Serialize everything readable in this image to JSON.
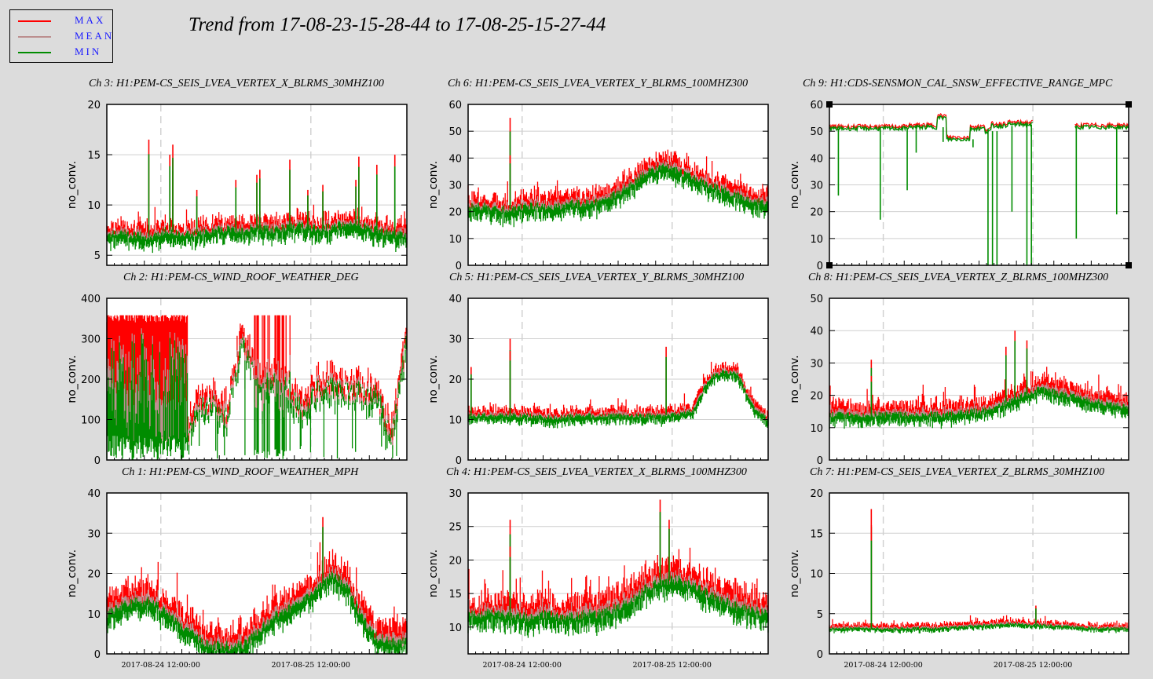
{
  "title": "Trend from 17-08-23-15-28-44 to 17-08-25-15-27-44",
  "legend": [
    {
      "label": "MAX",
      "color": "#ff0000"
    },
    {
      "label": "MEAN",
      "color": "#bc8f8f"
    },
    {
      "label": "MIN",
      "color": "#008c00"
    }
  ],
  "colors": {
    "max": "#ff0000",
    "mean": "#bc8f8f",
    "min": "#008c00",
    "background": "#dcdcdc",
    "plot_bg": "#ffffff",
    "grid": "#cfcfcf"
  },
  "chart_data": [
    {
      "type": "line",
      "title": "Ch 3: H1:PEM-CS_SEIS_LVEA_VERTEX_X_BLRMS_30MHZ100",
      "ylabel": "no_conv.",
      "ylim": [
        4,
        20
      ],
      "yticks": [
        5,
        10,
        15,
        20
      ],
      "xtick_labels": [
        "",
        ""
      ],
      "mean_profile": [
        7,
        7.2,
        7,
        6.8,
        7.5,
        7,
        7.2,
        7.4,
        7.6,
        7.4,
        7.8,
        7.5,
        7.8,
        8,
        7.6,
        7.8,
        8.2,
        8,
        7.5,
        7.2,
        7
      ],
      "spread": 1.6,
      "max_extra": 1.2,
      "spikes": [
        [
          0.14,
          16.5
        ],
        [
          0.21,
          15
        ],
        [
          0.22,
          14.5
        ],
        [
          0.22,
          16
        ],
        [
          0.3,
          11.5
        ],
        [
          0.43,
          12.5
        ],
        [
          0.5,
          13
        ],
        [
          0.51,
          13.5
        ],
        [
          0.61,
          14.5
        ],
        [
          0.67,
          11.5
        ],
        [
          0.72,
          12
        ],
        [
          0.83,
          12.5
        ],
        [
          0.84,
          14.8
        ],
        [
          0.9,
          14
        ],
        [
          0.96,
          15
        ]
      ]
    },
    {
      "type": "line",
      "title": "Ch 6: H1:PEM-CS_SEIS_LVEA_VERTEX_Y_BLRMS_100MHZ300",
      "ylabel": "no_conv.",
      "ylim": [
        0,
        60
      ],
      "yticks": [
        0,
        10,
        20,
        30,
        40,
        50,
        60
      ],
      "xtick_labels": [
        "",
        ""
      ],
      "mean_profile": [
        22,
        22,
        21,
        21,
        22,
        22,
        22,
        23,
        23,
        24,
        27,
        31,
        35,
        37,
        35,
        33,
        30,
        28,
        26,
        24,
        23
      ],
      "spread": 6,
      "max_extra": 5,
      "spikes": [
        [
          0.14,
          55
        ],
        [
          0.14,
          41
        ]
      ]
    },
    {
      "type": "line",
      "title": "Ch 9: H1:CDS-SENSMON_CAL_SNSW_EFFECTIVE_RANGE_MPC",
      "ylabel": "no_conv.",
      "ylim": [
        0,
        60
      ],
      "yticks": [
        0,
        10,
        20,
        30,
        40,
        50,
        60
      ],
      "xtick_labels": [
        "",
        ""
      ],
      "style": "flat",
      "segments": [
        [
          0,
          0.26,
          51
        ],
        [
          0.26,
          0.36,
          51.5
        ],
        [
          0.36,
          0.39,
          55
        ],
        [
          0.39,
          0.47,
          47
        ],
        [
          0.47,
          0.52,
          51
        ],
        [
          0.52,
          0.54,
          50
        ],
        [
          0.54,
          0.59,
          52
        ],
        [
          0.59,
          0.68,
          52.5
        ],
        [
          0.82,
          1.0,
          51.5
        ]
      ],
      "dips": [
        [
          0.03,
          26
        ],
        [
          0.17,
          17
        ],
        [
          0.26,
          28
        ],
        [
          0.29,
          42
        ],
        [
          0.38,
          46
        ],
        [
          0.48,
          44
        ],
        [
          0.53,
          0
        ],
        [
          0.545,
          0
        ],
        [
          0.56,
          0
        ],
        [
          0.61,
          20
        ],
        [
          0.66,
          0
        ],
        [
          0.675,
          0
        ],
        [
          0.825,
          10
        ],
        [
          0.96,
          19
        ]
      ]
    },
    {
      "type": "line",
      "title": "Ch 2: H1:PEM-CS_WIND_ROOF_WEATHER_DEG",
      "ylabel": "no_conv.",
      "ylim": [
        0,
        400
      ],
      "yticks": [
        0,
        100,
        200,
        300,
        400
      ],
      "xtick_labels": [
        "",
        ""
      ],
      "style": "wind",
      "mean_profile": [
        200,
        180,
        170,
        200,
        220,
        20,
        120,
        140,
        100,
        300,
        180,
        190,
        180,
        120,
        170,
        175,
        170,
        165,
        160,
        50,
        300
      ],
      "spread": 60,
      "max_extra": 40,
      "spikes": []
    },
    {
      "type": "line",
      "title": "Ch 5: H1:PEM-CS_SEIS_LVEA_VERTEX_Y_BLRMS_30MHZ100",
      "ylabel": "no_conv.",
      "ylim": [
        0,
        40
      ],
      "yticks": [
        0,
        10,
        20,
        30,
        40
      ],
      "xtick_labels": [
        "",
        ""
      ],
      "mean_profile": [
        11,
        11,
        11,
        11,
        11,
        10.5,
        10.5,
        11,
        11,
        11,
        11,
        11,
        11,
        11,
        11.5,
        12,
        20,
        22,
        21,
        13,
        10
      ],
      "spread": 2.5,
      "max_extra": 2,
      "spikes": [
        [
          0.14,
          30
        ],
        [
          0.14,
          27
        ],
        [
          0.01,
          23
        ],
        [
          0.66,
          28
        ]
      ]
    },
    {
      "type": "line",
      "title": "Ch 8: H1:PEM-CS_SEIS_LVEA_VERTEX_Z_BLRMS_100MHZ300",
      "ylabel": "no_conv.",
      "ylim": [
        0,
        50
      ],
      "yticks": [
        0,
        10,
        20,
        30,
        40,
        50
      ],
      "xtick_labels": [
        "",
        ""
      ],
      "mean_profile": [
        14,
        14,
        14,
        14,
        14,
        14,
        14,
        14,
        14,
        15,
        15,
        16,
        18,
        20,
        22,
        21,
        20,
        19,
        18,
        17,
        16
      ],
      "spread": 4,
      "max_extra": 4,
      "spikes": [
        [
          0.14,
          31
        ],
        [
          0.14,
          26
        ],
        [
          0.62,
          40
        ],
        [
          0.66,
          37
        ],
        [
          0.59,
          35
        ]
      ]
    },
    {
      "type": "line",
      "title": "Ch 1: H1:PEM-CS_WIND_ROOF_WEATHER_MPH",
      "ylabel": "no_conv.",
      "ylim": [
        0,
        40
      ],
      "yticks": [
        0,
        10,
        20,
        30,
        40
      ],
      "xtick_labels": [
        "2017-08-24 12:00:00",
        "2017-08-25 12:00:00"
      ],
      "mean_profile": [
        10,
        12,
        13,
        13,
        10,
        7,
        4,
        2,
        2,
        2,
        5,
        9,
        11,
        13,
        16,
        20,
        17,
        9,
        4,
        3,
        3
      ],
      "spread": 5,
      "max_extra": 5,
      "spikes": [
        [
          0.72,
          34
        ]
      ]
    },
    {
      "type": "line",
      "title": "Ch 4: H1:PEM-CS_SEIS_LVEA_VERTEX_X_BLRMS_100MHZ300",
      "ylabel": "no_conv.",
      "ylim": [
        6,
        30
      ],
      "yticks": [
        10,
        15,
        20,
        25,
        30
      ],
      "xtick_labels": [
        "2017-08-24 12:00:00",
        "2017-08-25 12:00:00"
      ],
      "mean_profile": [
        12,
        12,
        12,
        11.5,
        11.5,
        12,
        11.5,
        11.5,
        12,
        12,
        13,
        14,
        16,
        17,
        17,
        16,
        15,
        14,
        13,
        12.5,
        12
      ],
      "spread": 3,
      "max_extra": 3,
      "spikes": [
        [
          0.14,
          26
        ],
        [
          0.14,
          22
        ],
        [
          0.64,
          29
        ],
        [
          0.67,
          26
        ]
      ]
    },
    {
      "type": "line",
      "title": "Ch 7: H1:PEM-CS_SEIS_LVEA_VERTEX_Z_BLRMS_30MHZ100",
      "ylabel": "no_conv.",
      "ylim": [
        0,
        20
      ],
      "yticks": [
        0,
        5,
        10,
        15,
        20
      ],
      "xtick_labels": [
        "2017-08-24 12:00:00",
        "2017-08-25 12:00:00"
      ],
      "mean_profile": [
        3.2,
        3.2,
        3.2,
        3.2,
        3.1,
        3.2,
        3.2,
        3.2,
        3.3,
        3.4,
        3.5,
        3.6,
        3.8,
        3.7,
        3.6,
        3.5,
        3.4,
        3.3,
        3.2,
        3.2,
        3.2
      ],
      "spread": 0.6,
      "max_extra": 0.6,
      "spikes": [
        [
          0.14,
          18
        ],
        [
          0.14,
          16
        ],
        [
          0.69,
          6
        ]
      ]
    }
  ]
}
